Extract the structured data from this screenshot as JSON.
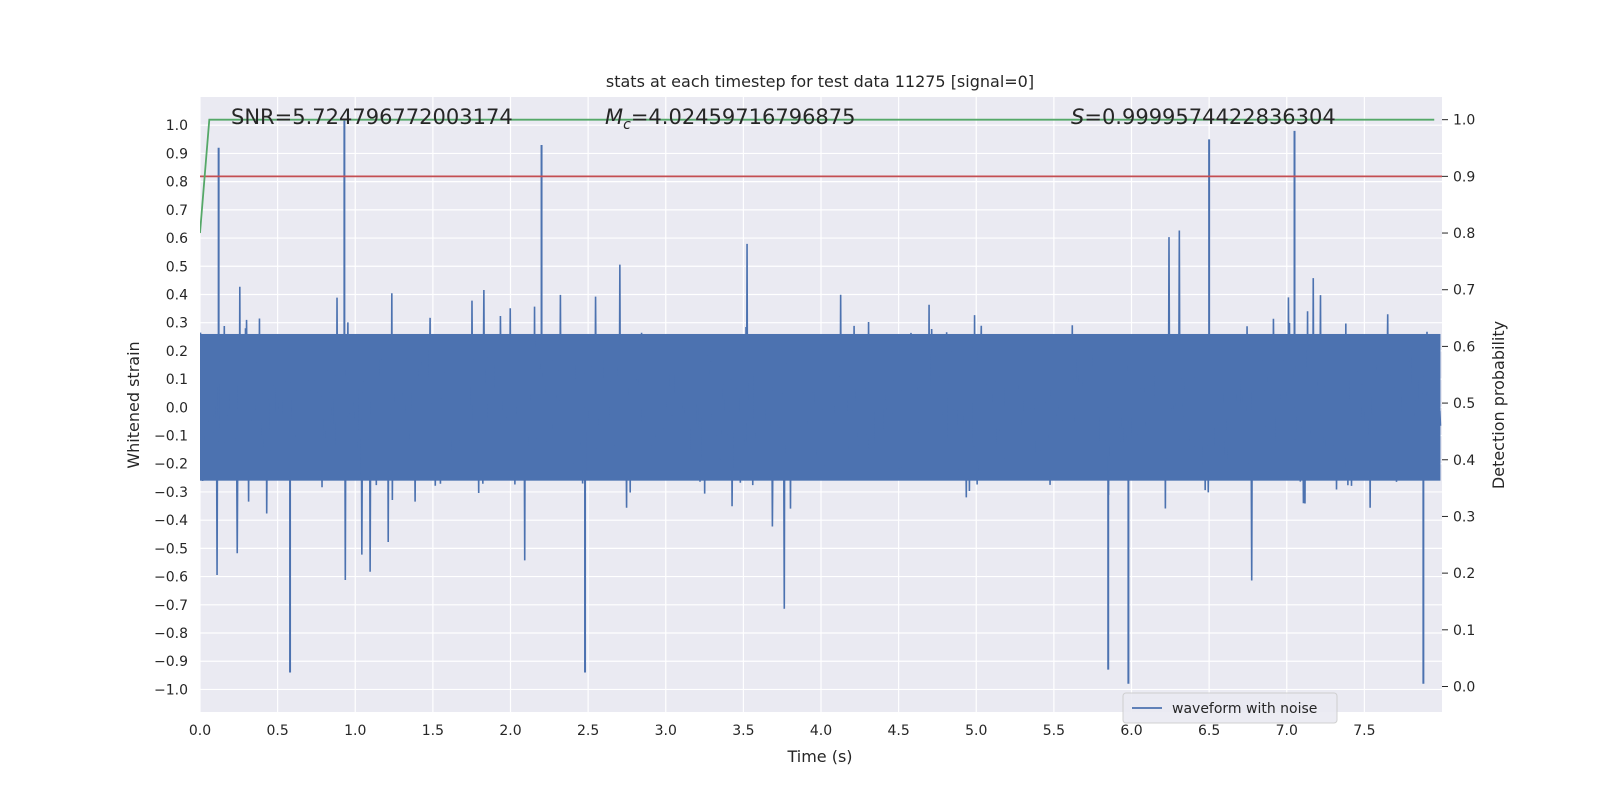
{
  "chart_data": {
    "type": "line",
    "title": "stats at each timestep for test data 11275 [signal=0]",
    "xlabel": "Time (s)",
    "ylabel": "Whitened strain",
    "y2label": "Detection probability",
    "xlim": [
      0.0,
      8.0
    ],
    "ylim": [
      -1.08,
      1.1
    ],
    "y2lim": [
      -0.045,
      1.04
    ],
    "xticks": [
      "0.0",
      "0.5",
      "1.0",
      "1.5",
      "2.0",
      "2.5",
      "3.0",
      "3.5",
      "4.0",
      "4.5",
      "5.0",
      "5.5",
      "6.0",
      "6.5",
      "7.0",
      "7.5"
    ],
    "yticks": [
      "1.0",
      "0.9",
      "0.8",
      "0.7",
      "0.6",
      "0.5",
      "0.4",
      "0.3",
      "0.2",
      "0.1",
      "0.0",
      "-0.1",
      "-0.2",
      "-0.3",
      "-0.4",
      "-0.5",
      "-0.6",
      "-0.7",
      "-0.8",
      "-0.9",
      "-1.0"
    ],
    "y2ticks": [
      "1.0",
      "0.9",
      "0.8",
      "0.7",
      "0.6",
      "0.5",
      "0.4",
      "0.3",
      "0.2",
      "0.1",
      "0.0"
    ],
    "grid": true,
    "legend": {
      "position": "lower-right",
      "entries": [
        "waveform with noise"
      ]
    },
    "annotations": {
      "snr": "SNR=5.724796772003174",
      "mc_symbol": "M",
      "mc_sub": "c",
      "mc_value": "=4.02459716796875",
      "s_symbol": "S",
      "s_value": "=0.9999574422836304"
    },
    "series": [
      {
        "name": "waveform with noise",
        "color": "#4c72b0",
        "axis": "left",
        "style": "dense noise, sampled at 4096 Hz",
        "envelope_peaks_upper": [
          [
            0.93,
            1.02
          ],
          [
            2.2,
            0.93
          ],
          [
            7.05,
            0.98
          ],
          [
            6.5,
            0.95
          ],
          [
            0.12,
            0.92
          ]
        ],
        "envelope_peaks_lower": [
          [
            5.98,
            -0.98
          ],
          [
            7.88,
            -0.98
          ],
          [
            0.58,
            -0.94
          ],
          [
            2.48,
            -0.94
          ],
          [
            5.85,
            -0.93
          ]
        ]
      },
      {
        "color": "#55a868",
        "axis": "right",
        "x": [
          0.0,
          0.06,
          7.95
        ],
        "y": [
          0.8,
          1.0,
          1.0
        ]
      },
      {
        "color": "#c44e52",
        "axis": "right",
        "x": [
          0.0,
          8.0
        ],
        "y": [
          0.9,
          0.9
        ]
      }
    ]
  }
}
